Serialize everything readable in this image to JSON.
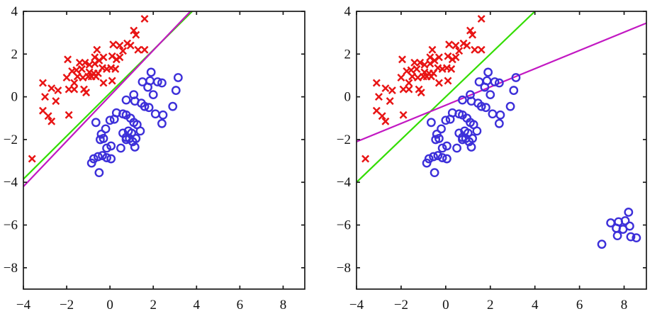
{
  "figure": {
    "background": "#ffffff",
    "description": "Two scatter plots with linear decision boundaries",
    "marker_colors": {
      "crosses": "#e81414",
      "circles": "#3c2fd9"
    },
    "line_colors": {
      "green": "#33dd00",
      "magenta": "#c218c2"
    },
    "axis_color": "#1a1a1a"
  },
  "chart_data": [
    {
      "id": "left-plot",
      "type": "scatter",
      "title": "",
      "xlabel": "",
      "ylabel": "",
      "xlim": [
        -4,
        9
      ],
      "ylim": [
        -9,
        4
      ],
      "xticks": [
        -4,
        -2,
        0,
        2,
        4,
        6,
        8
      ],
      "yticks": [
        -8,
        -6,
        -4,
        -2,
        0,
        2,
        4
      ],
      "grid": false,
      "legend": null,
      "series": [
        {
          "name": "class1-red-crosses",
          "marker": "x",
          "color": "#e81414",
          "points": [
            [
              1.6,
              3.65
            ],
            [
              1.1,
              3.1
            ],
            [
              1.2,
              2.9
            ],
            [
              0.95,
              2.4
            ],
            [
              0.8,
              2.5
            ],
            [
              1.3,
              2.2
            ],
            [
              1.6,
              2.2
            ],
            [
              0.15,
              2.45
            ],
            [
              0.45,
              2.4
            ],
            [
              0.6,
              2.15
            ],
            [
              -0.6,
              2.2
            ],
            [
              -1.95,
              1.75
            ],
            [
              -0.7,
              1.85
            ],
            [
              -0.5,
              1.7
            ],
            [
              -0.3,
              1.85
            ],
            [
              0.1,
              1.9
            ],
            [
              0.3,
              1.75
            ],
            [
              0.45,
              1.85
            ],
            [
              -1.4,
              1.6
            ],
            [
              -1.15,
              1.6
            ],
            [
              -0.95,
              1.5
            ],
            [
              -1.55,
              1.25
            ],
            [
              -1.3,
              1.3
            ],
            [
              -0.7,
              1.55
            ],
            [
              -0.35,
              1.35
            ],
            [
              -0.15,
              1.3
            ],
            [
              0.05,
              1.35
            ],
            [
              0.25,
              1.3
            ],
            [
              -0.95,
              1.15
            ],
            [
              -0.75,
              1.1
            ],
            [
              -0.55,
              1.1
            ],
            [
              -1.75,
              1.2
            ],
            [
              -1.5,
              0.95
            ],
            [
              -1.25,
              0.9
            ],
            [
              -1.0,
              0.95
            ],
            [
              -0.85,
              0.95
            ],
            [
              -0.65,
              0.95
            ],
            [
              -0.3,
              0.65
            ],
            [
              0.1,
              0.75
            ],
            [
              -1.65,
              0.65
            ],
            [
              -2.0,
              0.9
            ],
            [
              -1.9,
              0.35
            ],
            [
              -1.65,
              0.35
            ],
            [
              -1.2,
              0.35
            ],
            [
              -1.1,
              0.2
            ],
            [
              -2.4,
              0.3
            ],
            [
              -2.7,
              0.4
            ],
            [
              -3.1,
              0.65
            ],
            [
              -3.0,
              0.0
            ],
            [
              -2.5,
              -0.2
            ],
            [
              -3.1,
              -0.65
            ],
            [
              -2.85,
              -0.9
            ],
            [
              -2.7,
              -1.15
            ],
            [
              -1.9,
              -0.85
            ],
            [
              -3.6,
              -2.9
            ]
          ]
        },
        {
          "name": "class2-blue-circles",
          "marker": "o",
          "color": "#3c2fd9",
          "points": [
            [
              1.9,
              1.15
            ],
            [
              1.5,
              0.7
            ],
            [
              1.85,
              0.75
            ],
            [
              2.2,
              0.7
            ],
            [
              1.75,
              0.45
            ],
            [
              3.15,
              0.9
            ],
            [
              3.05,
              0.3
            ],
            [
              2.4,
              0.65
            ],
            [
              2.0,
              0.1
            ],
            [
              1.1,
              0.1
            ],
            [
              0.75,
              -0.15
            ],
            [
              1.15,
              -0.2
            ],
            [
              1.45,
              -0.3
            ],
            [
              1.6,
              -0.45
            ],
            [
              1.8,
              -0.5
            ],
            [
              2.9,
              -0.45
            ],
            [
              2.1,
              -0.8
            ],
            [
              2.45,
              -0.85
            ],
            [
              2.4,
              -1.25
            ],
            [
              0.3,
              -0.75
            ],
            [
              0.6,
              -0.8
            ],
            [
              0.75,
              -0.85
            ],
            [
              0.0,
              -1.1
            ],
            [
              0.2,
              -1.05
            ],
            [
              -0.65,
              -1.2
            ],
            [
              0.95,
              -1.0
            ],
            [
              1.1,
              -1.2
            ],
            [
              1.25,
              -1.3
            ],
            [
              -0.2,
              -1.5
            ],
            [
              -0.4,
              -1.75
            ],
            [
              -0.3,
              -1.95
            ],
            [
              0.6,
              -1.7
            ],
            [
              0.85,
              -1.6
            ],
            [
              1.0,
              -1.7
            ],
            [
              0.75,
              -1.9
            ],
            [
              0.9,
              -1.95
            ],
            [
              1.2,
              -1.95
            ],
            [
              1.4,
              -1.6
            ],
            [
              -0.45,
              -2.0
            ],
            [
              0.75,
              -2.0
            ],
            [
              1.05,
              -2.1
            ],
            [
              -0.15,
              -2.4
            ],
            [
              0.05,
              -2.3
            ],
            [
              0.5,
              -2.4
            ],
            [
              1.15,
              -2.35
            ],
            [
              -0.75,
              -2.9
            ],
            [
              -0.55,
              -2.8
            ],
            [
              -0.35,
              -2.75
            ],
            [
              -0.15,
              -2.85
            ],
            [
              0.05,
              -2.9
            ],
            [
              -0.85,
              -3.1
            ],
            [
              -0.5,
              -3.55
            ]
          ]
        }
      ],
      "lines": [
        {
          "name": "decision-boundary-green",
          "color": "#33dd00",
          "points": [
            [
              -4,
              -3.85
            ],
            [
              3.8,
              4
            ]
          ]
        },
        {
          "name": "decision-boundary-magenta",
          "color": "#c218c2",
          "points": [
            [
              -4,
              -4.2
            ],
            [
              3.72,
              4
            ]
          ]
        }
      ]
    },
    {
      "id": "right-plot",
      "type": "scatter",
      "title": "",
      "xlabel": "",
      "ylabel": "",
      "xlim": [
        -4,
        9
      ],
      "ylim": [
        -9,
        4
      ],
      "xticks": [
        -4,
        -2,
        0,
        2,
        4,
        6,
        8
      ],
      "yticks": [
        -8,
        -6,
        -4,
        -2,
        0,
        2,
        4
      ],
      "grid": false,
      "legend": null,
      "series": [
        {
          "name": "class1-red-crosses",
          "marker": "x",
          "color": "#e81414",
          "points": [
            [
              1.6,
              3.65
            ],
            [
              1.1,
              3.1
            ],
            [
              1.2,
              2.9
            ],
            [
              0.95,
              2.4
            ],
            [
              0.8,
              2.5
            ],
            [
              1.3,
              2.2
            ],
            [
              1.6,
              2.2
            ],
            [
              0.15,
              2.45
            ],
            [
              0.45,
              2.4
            ],
            [
              0.6,
              2.15
            ],
            [
              -0.6,
              2.2
            ],
            [
              -1.95,
              1.75
            ],
            [
              -0.7,
              1.85
            ],
            [
              -0.5,
              1.7
            ],
            [
              -0.3,
              1.85
            ],
            [
              0.1,
              1.9
            ],
            [
              0.3,
              1.75
            ],
            [
              0.45,
              1.85
            ],
            [
              -1.4,
              1.6
            ],
            [
              -1.15,
              1.6
            ],
            [
              -0.95,
              1.5
            ],
            [
              -1.55,
              1.25
            ],
            [
              -1.3,
              1.3
            ],
            [
              -0.7,
              1.55
            ],
            [
              -0.35,
              1.35
            ],
            [
              -0.15,
              1.3
            ],
            [
              0.05,
              1.35
            ],
            [
              0.25,
              1.3
            ],
            [
              -0.95,
              1.15
            ],
            [
              -0.75,
              1.1
            ],
            [
              -0.55,
              1.1
            ],
            [
              -1.75,
              1.2
            ],
            [
              -1.5,
              0.95
            ],
            [
              -1.25,
              0.9
            ],
            [
              -1.0,
              0.95
            ],
            [
              -0.85,
              0.95
            ],
            [
              -0.65,
              0.95
            ],
            [
              -0.3,
              0.65
            ],
            [
              0.1,
              0.75
            ],
            [
              -1.65,
              0.65
            ],
            [
              -2.0,
              0.9
            ],
            [
              -1.9,
              0.35
            ],
            [
              -1.65,
              0.35
            ],
            [
              -1.2,
              0.35
            ],
            [
              -1.1,
              0.2
            ],
            [
              -2.4,
              0.3
            ],
            [
              -2.7,
              0.4
            ],
            [
              -3.1,
              0.65
            ],
            [
              -3.0,
              0.0
            ],
            [
              -2.5,
              -0.2
            ],
            [
              -3.1,
              -0.65
            ],
            [
              -2.85,
              -0.9
            ],
            [
              -2.7,
              -1.15
            ],
            [
              -1.9,
              -0.85
            ],
            [
              -3.6,
              -2.9
            ]
          ]
        },
        {
          "name": "class2-blue-circles",
          "marker": "o",
          "color": "#3c2fd9",
          "points": [
            [
              1.9,
              1.15
            ],
            [
              1.5,
              0.7
            ],
            [
              1.85,
              0.75
            ],
            [
              2.2,
              0.7
            ],
            [
              1.75,
              0.45
            ],
            [
              3.15,
              0.9
            ],
            [
              3.05,
              0.3
            ],
            [
              2.4,
              0.65
            ],
            [
              2.0,
              0.1
            ],
            [
              1.1,
              0.1
            ],
            [
              0.75,
              -0.15
            ],
            [
              1.15,
              -0.2
            ],
            [
              1.45,
              -0.3
            ],
            [
              1.6,
              -0.45
            ],
            [
              1.8,
              -0.5
            ],
            [
              2.9,
              -0.45
            ],
            [
              2.1,
              -0.8
            ],
            [
              2.45,
              -0.85
            ],
            [
              2.4,
              -1.25
            ],
            [
              0.3,
              -0.75
            ],
            [
              0.6,
              -0.8
            ],
            [
              0.75,
              -0.85
            ],
            [
              0.0,
              -1.1
            ],
            [
              0.2,
              -1.05
            ],
            [
              -0.65,
              -1.2
            ],
            [
              0.95,
              -1.0
            ],
            [
              1.1,
              -1.2
            ],
            [
              1.25,
              -1.3
            ],
            [
              -0.2,
              -1.5
            ],
            [
              -0.4,
              -1.75
            ],
            [
              -0.3,
              -1.95
            ],
            [
              0.6,
              -1.7
            ],
            [
              0.85,
              -1.6
            ],
            [
              1.0,
              -1.7
            ],
            [
              0.75,
              -1.9
            ],
            [
              0.9,
              -1.95
            ],
            [
              1.2,
              -1.95
            ],
            [
              1.4,
              -1.6
            ],
            [
              -0.45,
              -2.0
            ],
            [
              0.75,
              -2.0
            ],
            [
              1.05,
              -2.1
            ],
            [
              -0.15,
              -2.4
            ],
            [
              0.05,
              -2.3
            ],
            [
              0.5,
              -2.4
            ],
            [
              1.15,
              -2.35
            ],
            [
              -0.75,
              -2.9
            ],
            [
              -0.55,
              -2.8
            ],
            [
              -0.35,
              -2.75
            ],
            [
              -0.15,
              -2.85
            ],
            [
              0.05,
              -2.9
            ],
            [
              -0.85,
              -3.1
            ],
            [
              -0.5,
              -3.55
            ]
          ]
        },
        {
          "name": "class2-blue-circles-outlier-cluster",
          "marker": "o",
          "color": "#3c2fd9",
          "points": [
            [
              8.2,
              -5.4
            ],
            [
              7.4,
              -5.9
            ],
            [
              7.75,
              -5.85
            ],
            [
              8.05,
              -5.8
            ],
            [
              7.65,
              -6.15
            ],
            [
              7.95,
              -6.2
            ],
            [
              8.25,
              -6.05
            ],
            [
              7.7,
              -6.5
            ],
            [
              8.3,
              -6.55
            ],
            [
              8.55,
              -6.6
            ],
            [
              7.0,
              -6.9
            ]
          ]
        }
      ],
      "lines": [
        {
          "name": "decision-boundary-green",
          "color": "#33dd00",
          "points": [
            [
              -4,
              -4.0
            ],
            [
              4.0,
              4
            ]
          ]
        },
        {
          "name": "decision-boundary-magenta",
          "color": "#c218c2",
          "points": [
            [
              -4,
              -2.1
            ],
            [
              9,
              3.45
            ]
          ]
        }
      ]
    }
  ]
}
